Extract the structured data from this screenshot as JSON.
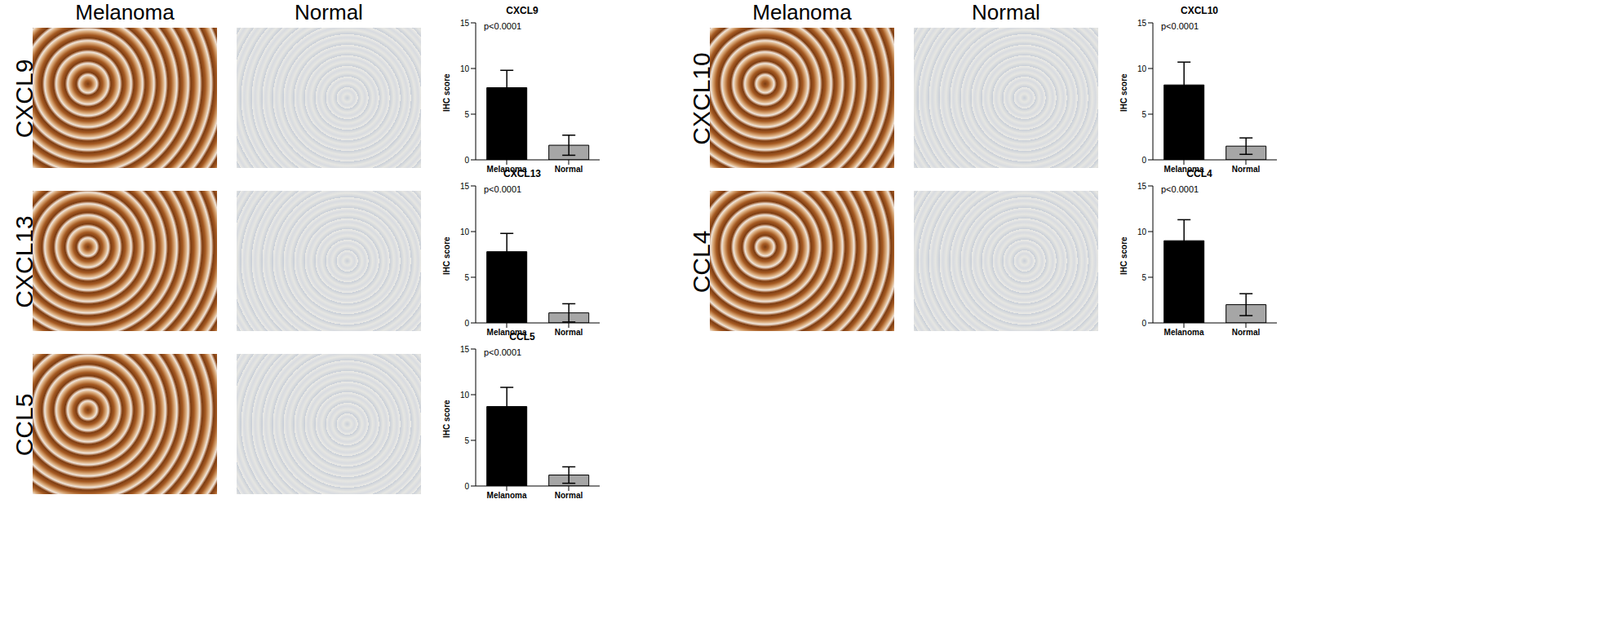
{
  "column_headers": [
    "Melanoma",
    "Normal"
  ],
  "chart_data": [
    {
      "type": "bar",
      "title": "CXCL9",
      "annotation": "p<0.0001",
      "y_label": "IHC score",
      "categories": [
        "Melanoma",
        "Normal"
      ],
      "values": [
        7.9,
        1.6
      ],
      "errors": [
        1.9,
        1.1
      ],
      "colors": [
        "#000000",
        "#a6a6a6"
      ],
      "ylim": [
        0,
        15
      ],
      "yticks": [
        0,
        5,
        10,
        15
      ]
    },
    {
      "type": "bar",
      "title": "CXCL13",
      "annotation": "p<0.0001",
      "y_label": "IHC score",
      "categories": [
        "Melanoma",
        "Normal"
      ],
      "values": [
        7.8,
        1.1
      ],
      "errors": [
        2.0,
        1.0
      ],
      "colors": [
        "#000000",
        "#a6a6a6"
      ],
      "ylim": [
        0,
        15
      ],
      "yticks": [
        0,
        5,
        10,
        15
      ]
    },
    {
      "type": "bar",
      "title": "CCL5",
      "annotation": "p<0.0001",
      "y_label": "IHC score",
      "categories": [
        "Melanoma",
        "Normal"
      ],
      "values": [
        8.7,
        1.2
      ],
      "errors": [
        2.1,
        0.9
      ],
      "colors": [
        "#000000",
        "#a6a6a6"
      ],
      "ylim": [
        0,
        15
      ],
      "yticks": [
        0,
        5,
        10,
        15
      ]
    },
    {
      "type": "bar",
      "title": "CXCL10",
      "annotation": "p<0.0001",
      "y_label": "IHC score",
      "categories": [
        "Melanoma",
        "Normal"
      ],
      "values": [
        8.2,
        1.5
      ],
      "errors": [
        2.5,
        0.9
      ],
      "colors": [
        "#000000",
        "#a6a6a6"
      ],
      "ylim": [
        0,
        15
      ],
      "yticks": [
        0,
        5,
        10,
        15
      ]
    },
    {
      "type": "bar",
      "title": "CCL4",
      "annotation": "p<0.0001",
      "y_label": "IHC score",
      "categories": [
        "Melanoma",
        "Normal"
      ],
      "values": [
        9.0,
        2.0
      ],
      "errors": [
        2.3,
        1.2
      ],
      "colors": [
        "#000000",
        "#a6a6a6"
      ],
      "ylim": [
        0,
        15
      ],
      "yticks": [
        0,
        5,
        10,
        15
      ]
    }
  ]
}
